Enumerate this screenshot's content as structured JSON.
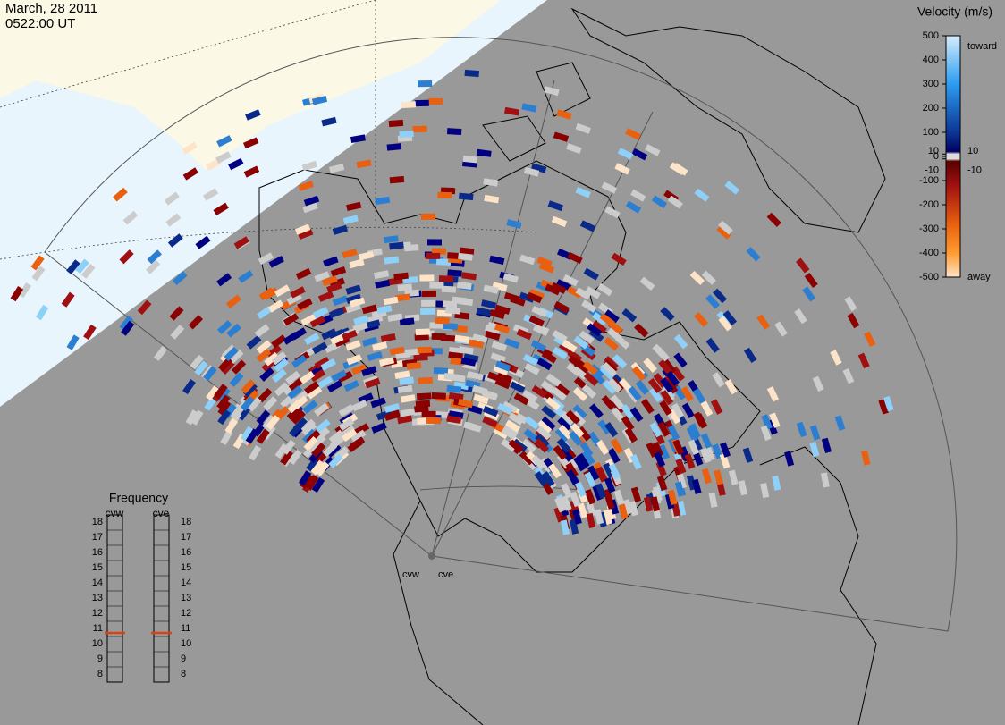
{
  "header": {
    "date": "March, 28 2011",
    "time": "0522:00 UT"
  },
  "colorbar": {
    "title": "Velocity (m/s)",
    "toward": "toward",
    "away": "away",
    "ticks": [
      500,
      400,
      300,
      200,
      100,
      10,
      0,
      -10,
      -100,
      -200,
      -300,
      -400,
      -500
    ]
  },
  "frequency": {
    "title": "Frequency",
    "ticks": [
      18,
      17,
      16,
      15,
      14,
      13,
      12,
      11,
      10,
      9,
      8
    ],
    "radars": [
      {
        "name": "cvw",
        "selected": 11
      },
      {
        "name": "cve",
        "selected": 11
      }
    ]
  }
}
